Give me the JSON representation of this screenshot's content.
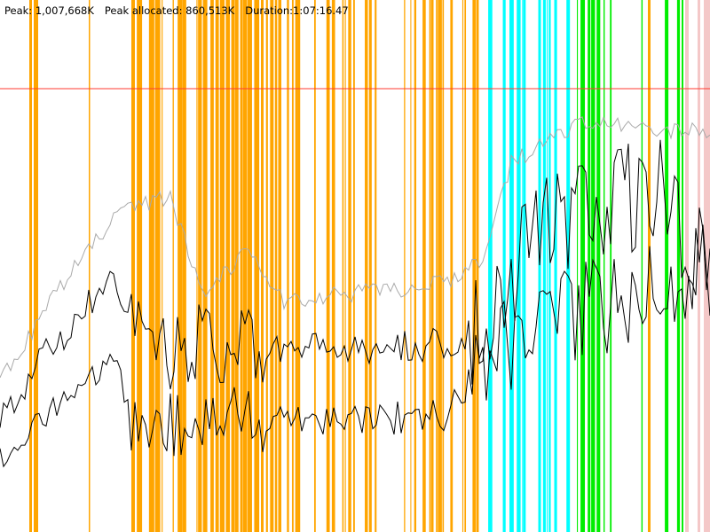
{
  "header": {
    "peak": "Peak: 1,007,668K",
    "peak_allocated": "Peak allocated: 860,513K",
    "duration": "Duration:1:07:16.47"
  }
}
